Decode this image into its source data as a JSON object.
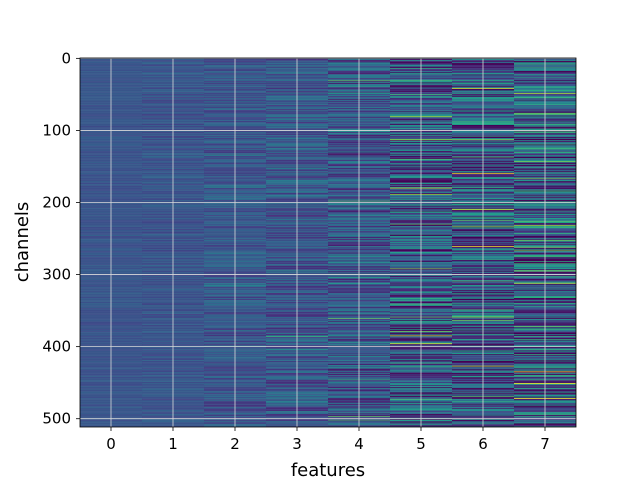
{
  "chart_data": {
    "type": "heatmap",
    "xlabel": "features",
    "ylabel": "channels",
    "x_ticks": [
      0,
      1,
      2,
      3,
      4,
      5,
      6,
      7
    ],
    "y_ticks": [
      0,
      100,
      200,
      300,
      400,
      500
    ],
    "xlim": [
      -0.5,
      7.5
    ],
    "ylim": [
      511.5,
      -0.5
    ],
    "columns": 8,
    "rows": 512,
    "grid": true,
    "colormap": "viridis",
    "column_contrast": [
      0.03,
      0.05,
      0.08,
      0.11,
      0.15,
      0.22,
      0.25,
      0.28
    ],
    "highlights": [
      {
        "feature": 5,
        "channel": 189,
        "level": 0.85
      },
      {
        "feature": 5,
        "channel": 292,
        "level": 0.8
      },
      {
        "feature": 5,
        "channel": 375,
        "level": 0.02
      },
      {
        "feature": 5,
        "channel": 92,
        "level": 0.02
      },
      {
        "feature": 6,
        "channel": 427,
        "level": 0.9
      },
      {
        "feature": 6,
        "channel": 233,
        "level": 0.8
      },
      {
        "feature": 6,
        "channel": 113,
        "level": 0.85
      },
      {
        "feature": 7,
        "channel": 49,
        "level": 0.9
      },
      {
        "feature": 7,
        "channel": 143,
        "level": 0.8
      },
      {
        "feature": 7,
        "channel": 372,
        "level": 0.75
      },
      {
        "feature": 4,
        "channel": 134,
        "level": 0.05
      },
      {
        "feature": 3,
        "channel": 386,
        "level": 0.65
      },
      {
        "feature": 2,
        "channel": 400,
        "level": 0.55
      }
    ]
  }
}
